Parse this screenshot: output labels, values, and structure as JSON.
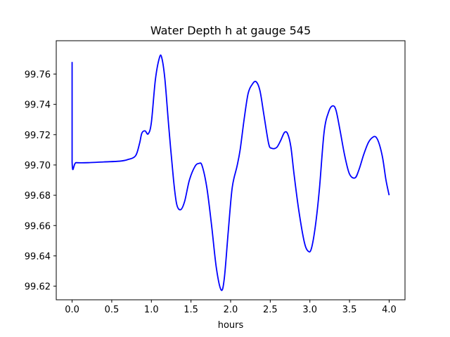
{
  "chart_data": {
    "type": "line",
    "title": "Water Depth h at gauge 545",
    "xlabel": "hours",
    "ylabel": "",
    "xlim": [
      -0.2,
      4.2
    ],
    "ylim": [
      99.611,
      99.782
    ],
    "xticks": [
      0.0,
      0.5,
      1.0,
      1.5,
      2.0,
      2.5,
      3.0,
      3.5,
      4.0
    ],
    "xtick_labels": [
      "0.0",
      "0.5",
      "1.0",
      "1.5",
      "2.0",
      "2.5",
      "3.0",
      "3.5",
      "4.0"
    ],
    "yticks": [
      99.62,
      99.64,
      99.66,
      99.68,
      99.7,
      99.72,
      99.74,
      99.76
    ],
    "ytick_labels": [
      "99.62",
      "99.64",
      "99.66",
      "99.68",
      "99.70",
      "99.72",
      "99.74",
      "99.76"
    ],
    "grid": false,
    "series": [
      {
        "color": "#0000ff",
        "x": [
          0.0,
          0.0,
          0.05,
          0.2,
          0.4,
          0.6,
          0.7,
          0.8,
          0.85,
          0.88,
          0.92,
          0.96,
          1.0,
          1.05,
          1.1,
          1.13,
          1.17,
          1.22,
          1.28,
          1.32,
          1.37,
          1.42,
          1.48,
          1.55,
          1.6,
          1.64,
          1.7,
          1.76,
          1.82,
          1.88,
          1.92,
          1.97,
          2.02,
          2.08,
          2.12,
          2.17,
          2.22,
          2.27,
          2.32,
          2.37,
          2.42,
          2.48,
          2.52,
          2.58,
          2.63,
          2.68,
          2.72,
          2.76,
          2.8,
          2.86,
          2.93,
          2.98,
          3.02,
          3.07,
          3.12,
          3.18,
          3.24,
          3.29,
          3.33,
          3.38,
          3.44,
          3.5,
          3.57,
          3.62,
          3.68,
          3.74,
          3.8,
          3.84,
          3.88,
          3.92,
          3.96,
          4.0
        ],
        "y": [
          99.768,
          99.702,
          99.7015,
          99.7015,
          99.702,
          99.7025,
          99.7035,
          99.706,
          99.714,
          99.721,
          99.7225,
          99.7205,
          99.728,
          99.756,
          99.7705,
          99.771,
          99.757,
          99.725,
          99.69,
          99.674,
          99.6705,
          99.676,
          99.69,
          99.699,
          99.701,
          99.6995,
          99.685,
          99.66,
          99.632,
          99.6175,
          99.625,
          99.656,
          99.685,
          99.699,
          99.71,
          99.73,
          99.747,
          99.753,
          99.755,
          99.749,
          99.733,
          99.714,
          99.711,
          99.7115,
          99.716,
          99.7215,
          99.7205,
          99.712,
          99.694,
          99.67,
          99.649,
          99.643,
          99.645,
          99.66,
          99.684,
          99.722,
          99.7355,
          99.739,
          99.736,
          99.723,
          99.706,
          99.694,
          99.6915,
          99.697,
          99.707,
          99.715,
          99.7185,
          99.718,
          99.713,
          99.704,
          99.69,
          99.68
        ]
      }
    ]
  }
}
